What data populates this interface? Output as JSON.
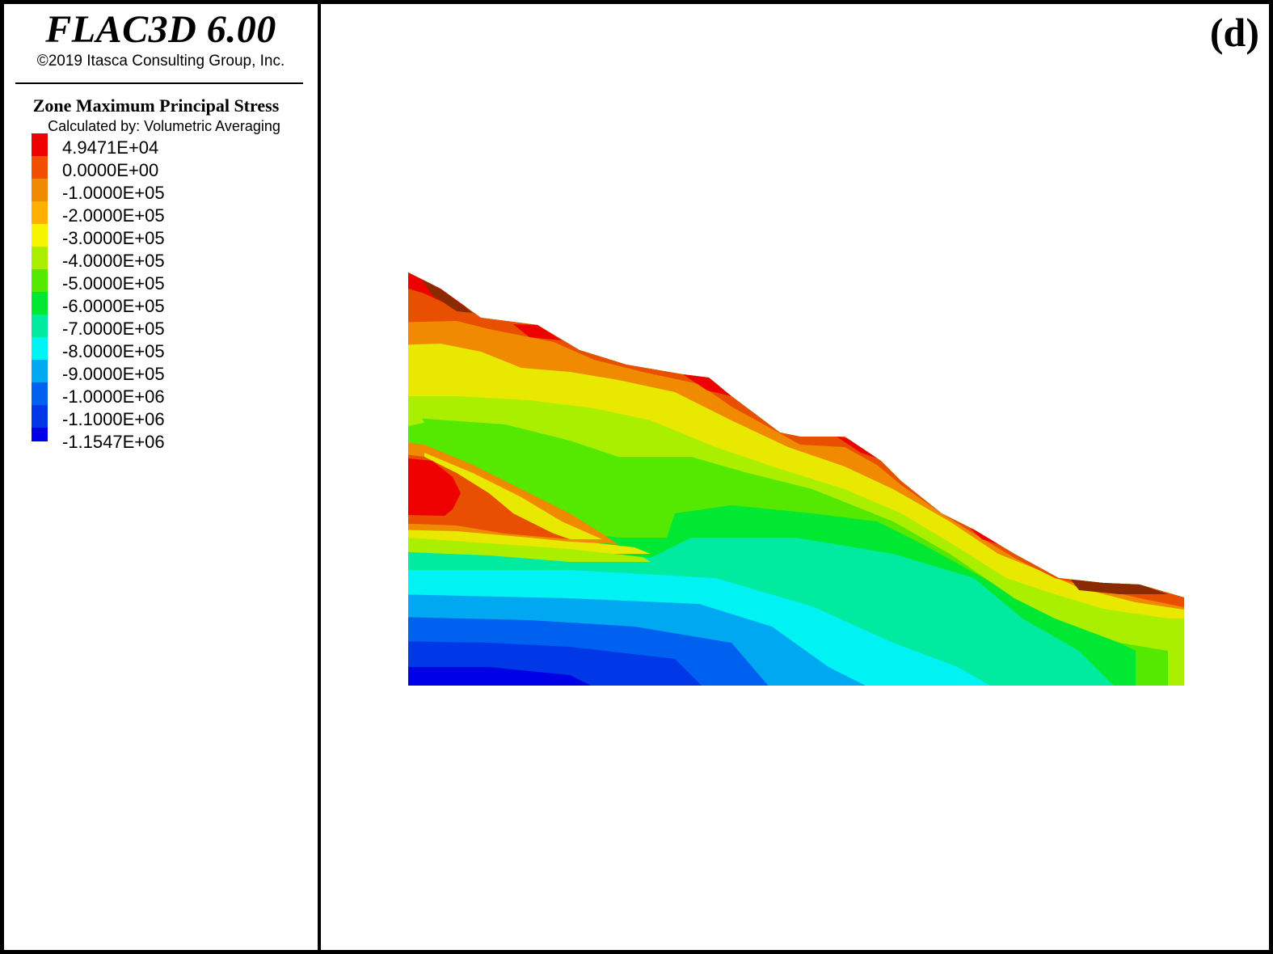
{
  "header": {
    "app_title": "FLAC3D 6.00",
    "copyright": "©2019 Itasca Consulting Group, Inc."
  },
  "legend": {
    "title": "Zone Maximum Principal Stress",
    "method": "Calculated by: Volumetric Averaging",
    "items": [
      {
        "label": "4.9471E+04",
        "color": "#ee0000"
      },
      {
        "label": "0.0000E+00",
        "color": "#f25000"
      },
      {
        "label": "-1.0000E+05",
        "color": "#f08a00"
      },
      {
        "label": "-2.0000E+05",
        "color": "#ffb000"
      },
      {
        "label": "-3.0000E+05",
        "color": "#f5f500"
      },
      {
        "label": "-4.0000E+05",
        "color": "#aaef00"
      },
      {
        "label": "-5.0000E+05",
        "color": "#55e800"
      },
      {
        "label": "-6.0000E+05",
        "color": "#00e832"
      },
      {
        "label": "-7.0000E+05",
        "color": "#00eaa0"
      },
      {
        "label": "-8.0000E+05",
        "color": "#00f2f2"
      },
      {
        "label": "-9.0000E+05",
        "color": "#00a8f2"
      },
      {
        "label": "-1.0000E+06",
        "color": "#0060f0"
      },
      {
        "label": "-1.1000E+06",
        "color": "#0038e8"
      },
      {
        "label": "-1.1547E+06",
        "color": "#0000e6"
      }
    ]
  },
  "plot": {
    "panel_label": "(d)"
  }
}
